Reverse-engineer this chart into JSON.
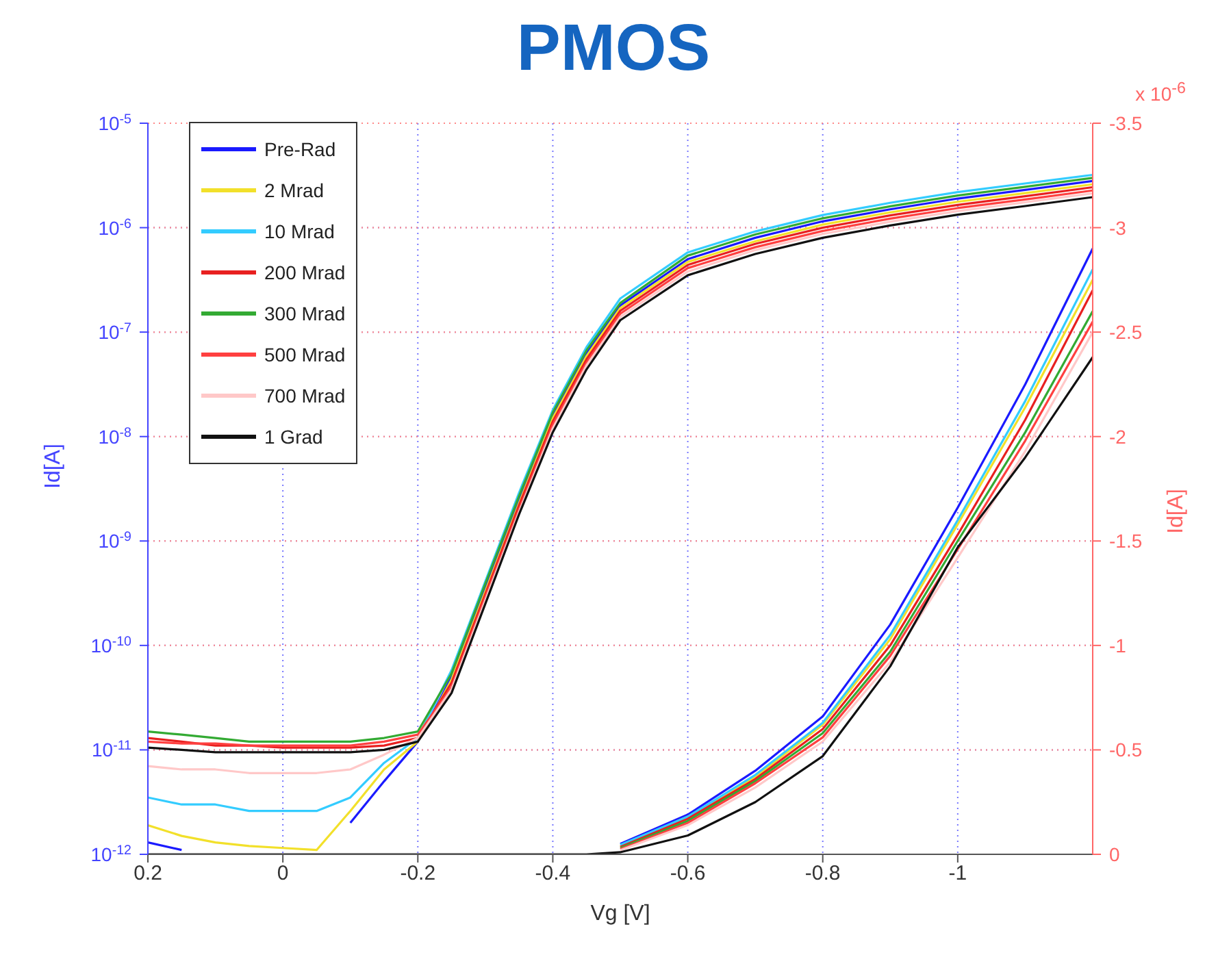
{
  "chart_data": {
    "type": "line",
    "title": "PMOS",
    "xlabel": "Vg [V]",
    "ylabel": "Id[A]",
    "y2label": "Id[A]",
    "annotations": [
      "x 10$^{-6}$"
    ],
    "log": "y",
    "grid": true,
    "legend": "top left",
    "marker": "none",
    "line_style": "solid",
    "xlim": [
      0.2,
      -1.2
    ],
    "xticks": [
      0.2,
      0,
      -0.2,
      -0.4,
      -0.6,
      -0.8,
      -1
    ],
    "ylim": [
      1e-12,
      1e-05
    ],
    "yticks": [
      {
        "value": 1e-12,
        "label": "10$^{-12}$"
      },
      {
        "value": 1e-11,
        "label": "10$^{-11}$"
      },
      {
        "value": 1e-10,
        "label": "10$^{-10}$"
      },
      {
        "value": 1e-09,
        "label": "10$^{-9}$"
      },
      {
        "value": 1e-08,
        "label": "10$^{-8}$"
      },
      {
        "value": 1e-07,
        "label": "10$^{-7}$"
      },
      {
        "value": 1e-06,
        "label": "10$^{-6}$"
      },
      {
        "value": 1e-05,
        "label": "10$^{-5}$"
      }
    ],
    "y2lim": [
      0,
      -3.5
    ],
    "y2ticks": [
      0,
      -0.5,
      -1,
      -1.5,
      -2,
      -2.5,
      -3,
      -3.5
    ],
    "x": [
      0.2,
      0.15,
      0.1,
      0.05,
      0,
      -0.05,
      -0.1,
      -0.15,
      -0.2,
      -0.25,
      -0.3,
      -0.35,
      -0.4,
      -0.45,
      -0.5,
      -0.6,
      -0.7,
      -0.8,
      -0.9,
      -1,
      -1.1,
      -1.2
    ],
    "series": [
      {
        "name": "Pre-Rad",
        "color": "#1a1aff",
        "values": [
          1.3e-12,
          1.1e-12,
          null,
          null,
          null,
          null,
          2e-12,
          5e-12,
          1.2e-11,
          5e-11,
          3.6e-10,
          2.5e-09,
          1.6e-08,
          6.3e-08,
          1.8e-07,
          5e-07,
          8e-07,
          1.15e-06,
          1.5e-06,
          1.9e-06,
          2.3e-06,
          2.8e-06
        ]
      },
      {
        "name": "2 Mrad",
        "color": "#f2e02a",
        "values": [
          1.9e-12,
          1.5e-12,
          1.3e-12,
          1.2e-12,
          1.15e-12,
          1.1e-12,
          2.6e-12,
          6.5e-12,
          1.2e-11,
          4.7e-11,
          3.3e-10,
          2.3e-09,
          1.5e-08,
          5.9e-08,
          1.7e-07,
          4.7e-07,
          7.4e-07,
          1.07e-06,
          1.4e-06,
          1.77e-06,
          2.14e-06,
          2.6e-06
        ]
      },
      {
        "name": "10 Mrad",
        "color": "#33ccff",
        "values": [
          3.5e-12,
          3e-12,
          3e-12,
          2.6e-12,
          2.6e-12,
          2.6e-12,
          3.5e-12,
          7.5e-12,
          1.3e-11,
          5.8e-11,
          4.1e-10,
          2.9e-09,
          1.8e-08,
          7.2e-08,
          2.1e-07,
          5.8e-07,
          9.2e-07,
          1.32e-06,
          1.73e-06,
          2.19e-06,
          2.65e-06,
          3.2e-06
        ]
      },
      {
        "name": "200 Mrad",
        "color": "#e82020",
        "values": [
          1.3e-11,
          1.2e-11,
          1.1e-11,
          1.1e-11,
          1.05e-11,
          1.05e-11,
          1.05e-11,
          1.1e-11,
          1.3e-11,
          4.4e-11,
          3.1e-10,
          2.2e-09,
          1.4e-08,
          5.5e-08,
          1.6e-07,
          4.4e-07,
          7e-07,
          1e-06,
          1.31e-06,
          1.65e-06,
          2e-06,
          2.44e-06
        ]
      },
      {
        "name": "300 Mrad",
        "color": "#33aa33",
        "values": [
          1.5e-11,
          1.4e-11,
          1.3e-11,
          1.2e-11,
          1.2e-11,
          1.2e-11,
          1.2e-11,
          1.3e-11,
          1.5e-11,
          5.4e-11,
          3.9e-10,
          2.7e-09,
          1.7e-08,
          6.7e-08,
          1.9e-07,
          5.4e-07,
          8.6e-07,
          1.23e-06,
          1.6e-06,
          2.03e-06,
          2.46e-06,
          3e-06
        ]
      },
      {
        "name": "500 Mrad",
        "color": "#ff4040",
        "values": [
          1.2e-11,
          1.15e-11,
          1.15e-11,
          1.1e-11,
          1.1e-11,
          1.1e-11,
          1.1e-11,
          1.2e-11,
          1.4e-11,
          4e-11,
          2.9e-10,
          2e-09,
          1.3e-08,
          5.1e-08,
          1.5e-07,
          4.1e-07,
          6.5e-07,
          9.3e-07,
          1.22e-06,
          1.54e-06,
          1.86e-06,
          2.27e-06
        ]
      },
      {
        "name": "700 Mrad",
        "color": "#ffc8c8",
        "values": [
          7e-12,
          6.5e-12,
          6.5e-12,
          6e-12,
          6e-12,
          6e-12,
          6.5e-12,
          9e-12,
          1.3e-11,
          3.8e-11,
          2.7e-10,
          1.9e-09,
          1.2e-08,
          4.8e-08,
          1.4e-07,
          3.8e-07,
          6.1e-07,
          8.7e-07,
          1.14e-06,
          1.44e-06,
          1.75e-06,
          2.13e-06
        ]
      },
      {
        "name": "1 Grad",
        "color": "#111111",
        "values": [
          1.05e-11,
          1e-11,
          9.5e-12,
          9.5e-12,
          9.5e-12,
          9.5e-12,
          9.5e-12,
          1e-11,
          1.2e-11,
          3.5e-11,
          2.5e-10,
          1.8e-09,
          1.1e-08,
          4.4e-08,
          1.3e-07,
          3.5e-07,
          5.6e-07,
          8e-07,
          1.05e-06,
          1.33e-06,
          1.61e-06,
          1.96e-06
        ]
      },
      {
        "axis": "y2",
        "color": "#1a1aff",
        "values": [
          null,
          null,
          null,
          null,
          null,
          null,
          null,
          null,
          null,
          null,
          null,
          null,
          null,
          null,
          -0.05,
          -0.19,
          -0.4,
          -0.66,
          -1.1,
          -1.66,
          -2.25,
          -2.9
        ]
      },
      {
        "axis": "y2",
        "color": "#f2e02a",
        "values": [
          null,
          null,
          null,
          null,
          null,
          null,
          null,
          null,
          null,
          null,
          null,
          null,
          null,
          null,
          -0.04,
          -0.18,
          -0.37,
          -0.62,
          -1.03,
          -1.58,
          -2.14,
          -2.75
        ]
      },
      {
        "axis": "y2",
        "color": "#33ccff",
        "values": [
          null,
          null,
          null,
          null,
          null,
          null,
          null,
          null,
          null,
          null,
          null,
          null,
          null,
          null,
          -0.045,
          -0.18,
          -0.38,
          -0.63,
          -1.05,
          -1.6,
          -2.17,
          -2.8
        ]
      },
      {
        "axis": "y2",
        "color": "#e82020",
        "values": [
          null,
          null,
          null,
          null,
          null,
          null,
          null,
          null,
          null,
          null,
          null,
          null,
          null,
          null,
          -0.035,
          -0.17,
          -0.36,
          -0.6,
          -1.0,
          -1.53,
          -2.08,
          -2.7
        ]
      },
      {
        "axis": "y2",
        "color": "#33aa33",
        "values": [
          null,
          null,
          null,
          null,
          null,
          null,
          null,
          null,
          null,
          null,
          null,
          null,
          null,
          null,
          -0.03,
          -0.16,
          -0.35,
          -0.58,
          -0.97,
          -1.5,
          -2.02,
          -2.6
        ]
      },
      {
        "axis": "y2",
        "color": "#ff4040",
        "values": [
          null,
          null,
          null,
          null,
          null,
          null,
          null,
          null,
          null,
          null,
          null,
          null,
          null,
          null,
          -0.025,
          -0.15,
          -0.34,
          -0.56,
          -0.95,
          -1.46,
          -1.98,
          -2.55
        ]
      },
      {
        "axis": "y2",
        "color": "#ffc8c8",
        "values": [
          null,
          null,
          null,
          null,
          null,
          null,
          null,
          null,
          null,
          null,
          null,
          null,
          null,
          null,
          -0.02,
          -0.14,
          -0.32,
          -0.54,
          -0.92,
          -1.42,
          -1.93,
          -2.5
        ]
      },
      {
        "axis": "y2",
        "color": "#111111",
        "values": [
          0,
          0,
          0,
          0,
          0,
          0,
          0,
          0,
          0,
          0,
          0,
          0,
          0,
          0,
          -0.01,
          -0.09,
          -0.25,
          -0.47,
          -0.9,
          -1.47,
          -1.9,
          -2.38
        ]
      }
    ]
  }
}
